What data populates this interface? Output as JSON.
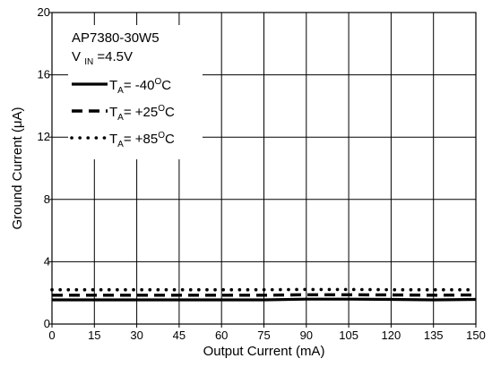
{
  "chart_data": {
    "type": "line",
    "xlabel": "Output Current (mA)",
    "ylabel": "Ground Current (μA)",
    "xlim": [
      0,
      150
    ],
    "ylim": [
      0,
      20
    ],
    "x_ticks": [
      0,
      15,
      30,
      45,
      60,
      75,
      90,
      105,
      120,
      135,
      150
    ],
    "y_ticks": [
      0,
      4,
      8,
      12,
      16,
      20
    ],
    "grid": true,
    "annotation": {
      "device": "AP7380-30W5",
      "vin_main": "V",
      "vin_sub": "IN",
      "vin_value": "=4.5V"
    },
    "legend_placement": "top-left",
    "series": [
      {
        "name": "T_A = -40°C",
        "legend_prefix": "T",
        "legend_sub": "A",
        "legend_mid": "= -40",
        "legend_sup": "O",
        "legend_suffix": "C",
        "style": "solid",
        "x": [
          0,
          15,
          30,
          45,
          60,
          75,
          90,
          105,
          120,
          135,
          150
        ],
        "y": [
          1.55,
          1.55,
          1.55,
          1.55,
          1.55,
          1.55,
          1.6,
          1.6,
          1.58,
          1.55,
          1.58
        ]
      },
      {
        "name": "T_A = +25°C",
        "legend_prefix": "T",
        "legend_sub": "A",
        "legend_mid": "= +25",
        "legend_sup": "O",
        "legend_suffix": "C",
        "style": "dashed",
        "x": [
          0,
          15,
          30,
          45,
          60,
          75,
          90,
          105,
          120,
          135,
          150
        ],
        "y": [
          1.85,
          1.85,
          1.85,
          1.85,
          1.85,
          1.85,
          1.88,
          1.88,
          1.87,
          1.85,
          1.87
        ]
      },
      {
        "name": "T_A = +85°C",
        "legend_prefix": "T",
        "legend_sub": "A",
        "legend_mid": "= +85",
        "legend_sup": "O",
        "legend_suffix": "C",
        "style": "dotted",
        "x": [
          0,
          15,
          30,
          45,
          60,
          75,
          90,
          105,
          120,
          135,
          150
        ],
        "y": [
          2.2,
          2.2,
          2.2,
          2.2,
          2.2,
          2.2,
          2.22,
          2.22,
          2.2,
          2.2,
          2.2
        ]
      }
    ]
  }
}
